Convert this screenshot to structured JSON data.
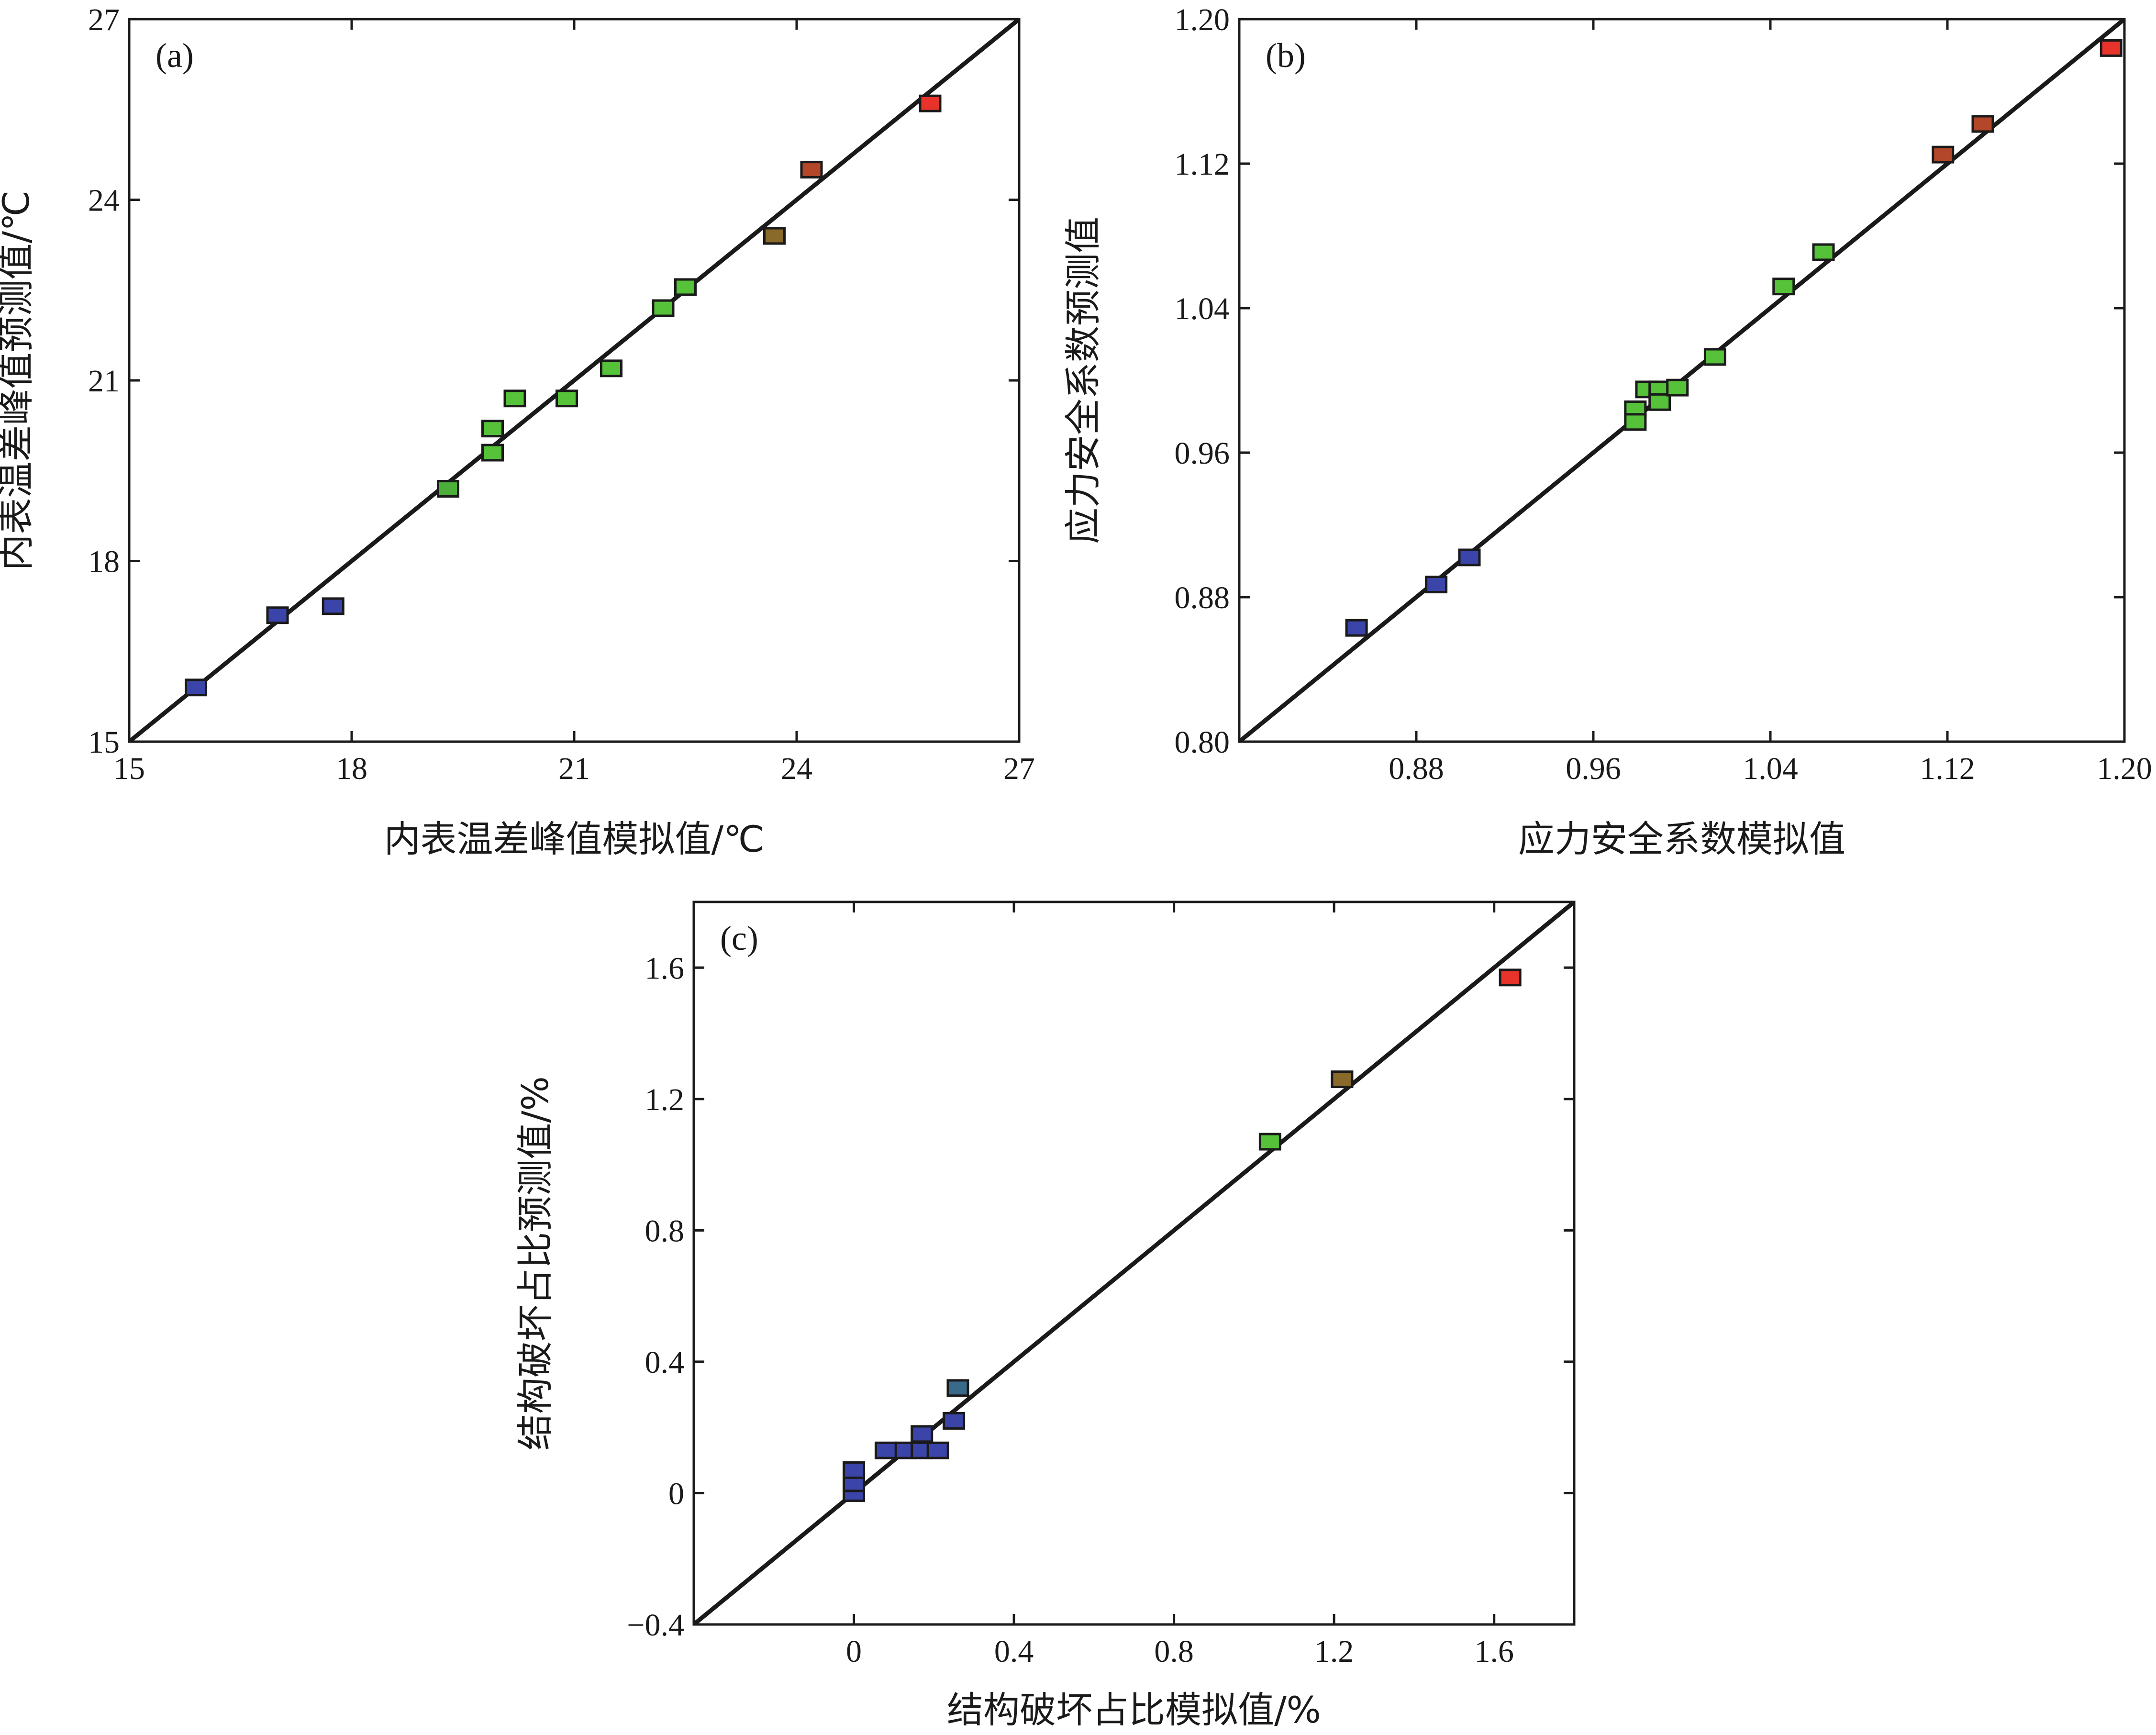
{
  "chart_data": [
    {
      "id": "a",
      "type": "scatter",
      "panel_label": "(a)",
      "xlabel": "内表温差峰值模拟值/℃",
      "ylabel": "内表温差峰值预测值/℃",
      "xlim": [
        15,
        27
      ],
      "ylim": [
        15,
        27
      ],
      "xticks": [
        15,
        18,
        21,
        24,
        27
      ],
      "yticks": [
        15,
        18,
        21,
        24,
        27
      ],
      "xtick_labels": [
        "15",
        "18",
        "21",
        "24",
        "27"
      ],
      "ytick_labels": [
        "15",
        "18",
        "21",
        "24",
        "27"
      ],
      "reference_line": "y = x",
      "points": [
        {
          "x": 15.9,
          "y": 15.9,
          "color": "#3b44a8"
        },
        {
          "x": 17.0,
          "y": 17.1,
          "color": "#3b44a8"
        },
        {
          "x": 17.75,
          "y": 17.25,
          "color": "#3b44a8"
        },
        {
          "x": 19.3,
          "y": 19.2,
          "color": "#4caf3a"
        },
        {
          "x": 19.9,
          "y": 19.8,
          "color": "#55c23a"
        },
        {
          "x": 19.9,
          "y": 20.2,
          "color": "#55c23a"
        },
        {
          "x": 20.2,
          "y": 20.7,
          "color": "#55c23a"
        },
        {
          "x": 20.9,
          "y": 20.7,
          "color": "#55c23a"
        },
        {
          "x": 21.5,
          "y": 21.2,
          "color": "#55c23a"
        },
        {
          "x": 22.2,
          "y": 22.2,
          "color": "#55c23a"
        },
        {
          "x": 22.5,
          "y": 22.55,
          "color": "#55c23a"
        },
        {
          "x": 23.7,
          "y": 23.4,
          "color": "#8a6a2a"
        },
        {
          "x": 24.2,
          "y": 24.5,
          "color": "#b3472a"
        },
        {
          "x": 25.8,
          "y": 25.6,
          "color": "#e8332b"
        }
      ]
    },
    {
      "id": "b",
      "type": "scatter",
      "panel_label": "(b)",
      "xlabel": "应力安全系数模拟值",
      "ylabel": "应力安全系数预测值",
      "xlim": [
        0.8,
        1.2
      ],
      "ylim": [
        0.8,
        1.2
      ],
      "xticks": [
        0.88,
        0.96,
        1.04,
        1.12,
        1.2
      ],
      "yticks": [
        0.8,
        0.88,
        0.96,
        1.04,
        1.12,
        1.2
      ],
      "xtick_labels": [
        "0.88",
        "0.96",
        "1.04",
        "1.12",
        "1.20"
      ],
      "ytick_labels": [
        "0.80",
        "0.88",
        "0.96",
        "1.04",
        "1.12",
        "1.20"
      ],
      "reference_line": "y = x",
      "points": [
        {
          "x": 0.853,
          "y": 0.863,
          "color": "#3b44a8"
        },
        {
          "x": 0.889,
          "y": 0.887,
          "color": "#3b44a8"
        },
        {
          "x": 0.904,
          "y": 0.902,
          "color": "#3b44a8"
        },
        {
          "x": 0.979,
          "y": 0.984,
          "color": "#55c23a"
        },
        {
          "x": 0.979,
          "y": 0.977,
          "color": "#55c23a"
        },
        {
          "x": 0.984,
          "y": 0.995,
          "color": "#55c23a"
        },
        {
          "x": 0.99,
          "y": 0.995,
          "color": "#55c23a"
        },
        {
          "x": 0.99,
          "y": 0.988,
          "color": "#55c23a"
        },
        {
          "x": 0.998,
          "y": 0.996,
          "color": "#55c23a"
        },
        {
          "x": 1.015,
          "y": 1.013,
          "color": "#55c23a"
        },
        {
          "x": 1.046,
          "y": 1.052,
          "color": "#55c23a"
        },
        {
          "x": 1.064,
          "y": 1.071,
          "color": "#55c23a"
        },
        {
          "x": 1.118,
          "y": 1.125,
          "color": "#b3472a"
        },
        {
          "x": 1.136,
          "y": 1.142,
          "color": "#b3472a"
        },
        {
          "x": 1.194,
          "y": 1.184,
          "color": "#e8332b"
        }
      ]
    },
    {
      "id": "c",
      "type": "scatter",
      "panel_label": "(c)",
      "xlabel": "结构破坏占比模拟值/%",
      "ylabel": "结构破坏占比预测值/%",
      "xlim": [
        -0.4,
        1.8
      ],
      "ylim": [
        -0.4,
        1.8
      ],
      "xticks": [
        0,
        0.4,
        0.8,
        1.2,
        1.6
      ],
      "yticks": [
        -0.4,
        0,
        0.4,
        0.8,
        1.2,
        1.6
      ],
      "xtick_labels": [
        "0",
        "0.4",
        "0.8",
        "1.2",
        "1.6"
      ],
      "ytick_labels": [
        "−0.4",
        "0",
        "0.4",
        "0.8",
        "1.2",
        "1.6"
      ],
      "reference_line": "y = x",
      "points": [
        {
          "x": 0.0,
          "y": 0.0,
          "color": "#3b44a8"
        },
        {
          "x": 0.0,
          "y": 0.03,
          "color": "#3b44a8"
        },
        {
          "x": 0.0,
          "y": 0.07,
          "color": "#3b44a8"
        },
        {
          "x": 0.08,
          "y": 0.13,
          "color": "#3b44a8"
        },
        {
          "x": 0.13,
          "y": 0.13,
          "color": "#3b44a8"
        },
        {
          "x": 0.17,
          "y": 0.13,
          "color": "#3b44a8"
        },
        {
          "x": 0.17,
          "y": 0.18,
          "color": "#3b44a8"
        },
        {
          "x": 0.21,
          "y": 0.13,
          "color": "#3b44a8"
        },
        {
          "x": 0.25,
          "y": 0.22,
          "color": "#3b44a8"
        },
        {
          "x": 0.26,
          "y": 0.32,
          "color": "#3a6a8a"
        },
        {
          "x": 1.04,
          "y": 1.07,
          "color": "#55c23a"
        },
        {
          "x": 1.22,
          "y": 1.26,
          "color": "#8a6a2a"
        },
        {
          "x": 1.64,
          "y": 1.57,
          "color": "#e8332b"
        }
      ]
    }
  ]
}
